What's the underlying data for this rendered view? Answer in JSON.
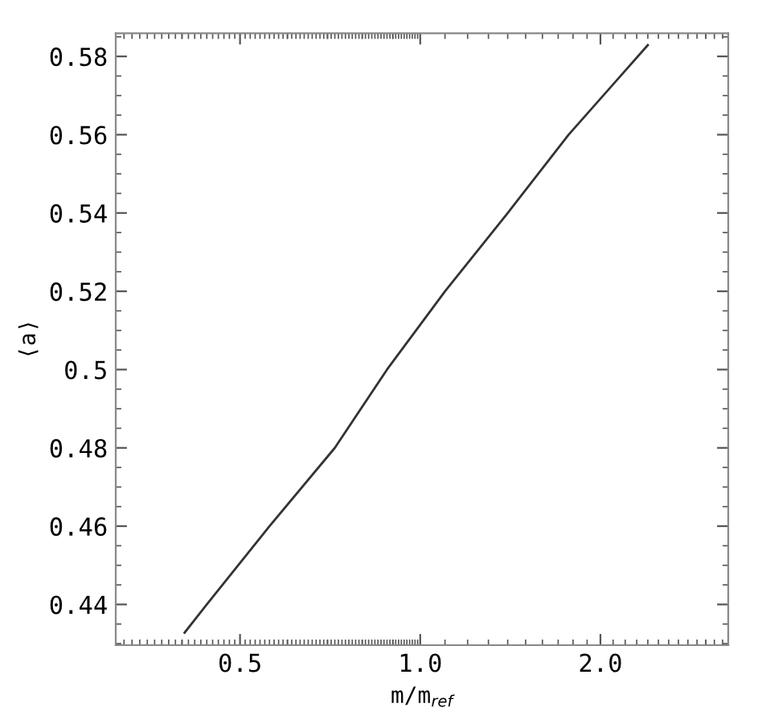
{
  "chart_data": {
    "type": "line",
    "xlabel": "m/m$_{ref}$",
    "ylabel": "⟨a⟩",
    "log": "x",
    "x": [
      0.404,
      0.44,
      0.56,
      0.72,
      0.88,
      1.1,
      1.4,
      1.77,
      2.4
    ],
    "series": [
      {
        "color": "#333333",
        "values": [
          0.4328,
          0.44,
          0.46,
          0.48,
          0.5,
          0.52,
          0.54,
          0.56,
          0.5829
        ]
      }
    ],
    "xlim": [
      0.31,
      3.27
    ],
    "ylim": [
      0.4296,
      0.5859
    ],
    "xticks": [
      0.5,
      {
        "value": 1.0,
        "label": "1.0"
      },
      {
        "value": 2.0,
        "label": "2.0"
      }
    ],
    "yticks": [
      0.44,
      0.46,
      0.48,
      0.5,
      0.52,
      0.54,
      0.56,
      0.58
    ],
    "grid": false,
    "marker": "none",
    "line_style": "solid"
  }
}
